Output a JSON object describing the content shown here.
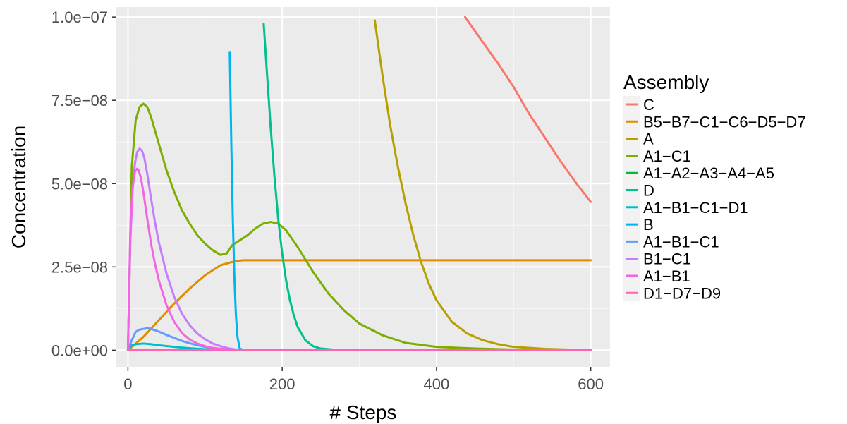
{
  "chart_data": {
    "type": "line",
    "xlabel": "# Steps",
    "ylabel": "Concentration",
    "xlim": [
      -15,
      625
    ],
    "ylim": [
      -5e-09,
      1.03e-07
    ],
    "x_ticks": [
      0,
      200,
      400,
      600
    ],
    "x_tick_labels": [
      "0",
      "200",
      "400",
      "600"
    ],
    "y_ticks": [
      0,
      2.5e-08,
      5e-08,
      7.5e-08,
      1e-07
    ],
    "y_tick_labels": [
      "0.0e+00",
      "2.5e−08",
      "5.0e−08",
      "7.5e−08",
      "1.0e−07"
    ],
    "grid": true,
    "background": "#ebebeb",
    "legend": {
      "title": "Assembly",
      "placement": "right"
    },
    "series": [
      {
        "name": "C",
        "color": "#F8766D",
        "x": [
          437,
          460,
          480,
          500,
          520,
          540,
          560,
          580,
          600
        ],
        "y": [
          1e-07,
          9.25e-08,
          8.6e-08,
          7.9e-08,
          7.1e-08,
          6.4e-08,
          5.7e-08,
          5.05e-08,
          4.45e-08
        ]
      },
      {
        "name": "B5−B7−C1−C6−D5−D7",
        "color": "#DE8C00",
        "x": [
          0,
          20,
          40,
          60,
          80,
          100,
          120,
          140,
          150,
          200,
          300,
          400,
          500,
          600
        ],
        "y": [
          0,
          4e-09,
          9e-09,
          1.4e-08,
          1.85e-08,
          2.25e-08,
          2.55e-08,
          2.68e-08,
          2.7e-08,
          2.7e-08,
          2.7e-08,
          2.7e-08,
          2.7e-08,
          2.7e-08
        ]
      },
      {
        "name": "A",
        "color": "#B79F00",
        "x": [
          320,
          330,
          340,
          350,
          360,
          370,
          380,
          390,
          400,
          420,
          440,
          460,
          480,
          500,
          540,
          600
        ],
        "y": [
          9.9e-08,
          8.25e-08,
          6.75e-08,
          5.5e-08,
          4.4e-08,
          3.45e-08,
          2.65e-08,
          2e-08,
          1.5e-08,
          8.5e-09,
          5e-09,
          3e-09,
          1.8e-09,
          1e-09,
          4e-10,
          0
        ]
      },
      {
        "name": "A1−C1",
        "color": "#7CAE00",
        "x": [
          0,
          5,
          10,
          15,
          20,
          25,
          30,
          40,
          50,
          60,
          70,
          80,
          90,
          100,
          110,
          120,
          128,
          135,
          145,
          155,
          165,
          175,
          185,
          195,
          205,
          220,
          240,
          260,
          280,
          300,
          330,
          360,
          400,
          450,
          500,
          600
        ],
        "y": [
          0,
          5.5e-08,
          6.9e-08,
          7.3e-08,
          7.4e-08,
          7.3e-08,
          7e-08,
          6.2e-08,
          5.4e-08,
          4.75e-08,
          4.2e-08,
          3.8e-08,
          3.45e-08,
          3.2e-08,
          3e-08,
          2.86e-08,
          2.9e-08,
          3.15e-08,
          3.3e-08,
          3.45e-08,
          3.65e-08,
          3.8e-08,
          3.85e-08,
          3.8e-08,
          3.6e-08,
          3.1e-08,
          2.35e-08,
          1.7e-08,
          1.2e-08,
          8e-09,
          4.5e-09,
          2.2e-09,
          1e-09,
          5e-10,
          2e-10,
          0
        ]
      },
      {
        "name": "A1−A2−A3−A4−A5",
        "color": "#00BA38",
        "x": [
          0,
          100,
          200,
          300,
          400,
          500,
          600
        ],
        "y": [
          0,
          0,
          0,
          0,
          0,
          0,
          0
        ]
      },
      {
        "name": "D",
        "color": "#00C08B",
        "x": [
          176,
          180,
          185,
          190,
          195,
          200,
          205,
          210,
          215,
          220,
          230,
          240,
          250,
          270,
          300,
          600
        ],
        "y": [
          9.8e-08,
          8.4e-08,
          6.7e-08,
          5.2e-08,
          3.9e-08,
          2.9e-08,
          2.1e-08,
          1.5e-08,
          1.05e-08,
          7e-09,
          3e-09,
          1.2e-09,
          5e-10,
          1e-10,
          0,
          0
        ]
      },
      {
        "name": "A1−B1−C1−D1",
        "color": "#00BFC4",
        "x": [
          0,
          5,
          10,
          20,
          30,
          40,
          60,
          80,
          100,
          120,
          140,
          200,
          600
        ],
        "y": [
          0,
          1.5e-09,
          1.8e-09,
          2e-09,
          1.8e-09,
          1.5e-09,
          1e-09,
          6e-10,
          3e-10,
          1.5e-10,
          0,
          0,
          0
        ]
      },
      {
        "name": "B",
        "color": "#00B4F0",
        "x": [
          132,
          134,
          136,
          138,
          140,
          142,
          145,
          150,
          600
        ],
        "y": [
          8.95e-08,
          6.2e-08,
          3.9e-08,
          2.2e-08,
          1.05e-08,
          4e-09,
          5e-10,
          0,
          0
        ]
      },
      {
        "name": "A1−B1−C1",
        "color": "#619CFF",
        "x": [
          0,
          5,
          10,
          15,
          20,
          25,
          30,
          40,
          50,
          60,
          70,
          80,
          90,
          100,
          110,
          120,
          130,
          140,
          145,
          200,
          600
        ],
        "y": [
          0,
          3e-09,
          5.5e-09,
          6.2e-09,
          6.4e-09,
          6.6e-09,
          6.4e-09,
          5.6e-09,
          4.6e-09,
          3.7e-09,
          2.8e-09,
          2.1e-09,
          1.5e-09,
          1e-09,
          7e-10,
          4e-10,
          2e-10,
          1e-10,
          0,
          0,
          0
        ]
      },
      {
        "name": "B1−C1",
        "color": "#C77CFF",
        "x": [
          0,
          3,
          6,
          9,
          12,
          15,
          18,
          21,
          25,
          30,
          35,
          40,
          50,
          60,
          70,
          80,
          90,
          100,
          110,
          120,
          130,
          140,
          145,
          200,
          600
        ],
        "y": [
          0,
          3.2e-08,
          4.8e-08,
          5.6e-08,
          5.95e-08,
          6.05e-08,
          6e-08,
          5.8e-08,
          5.3e-08,
          4.55e-08,
          3.85e-08,
          3.25e-08,
          2.3e-08,
          1.6e-08,
          1.1e-08,
          7.5e-09,
          5e-09,
          3.3e-09,
          2e-09,
          1.2e-09,
          6e-10,
          2e-10,
          0,
          0,
          0
        ]
      },
      {
        "name": "A1−B1",
        "color": "#F564E3",
        "x": [
          0,
          3,
          6,
          9,
          12,
          14,
          17,
          20,
          25,
          30,
          35,
          40,
          50,
          60,
          70,
          80,
          90,
          100,
          110,
          120,
          130,
          140,
          600
        ],
        "y": [
          0,
          3.5e-08,
          4.9e-08,
          5.35e-08,
          5.45e-08,
          5.4e-08,
          5.15e-08,
          4.75e-08,
          3.95e-08,
          3.2e-08,
          2.6e-08,
          2.1e-08,
          1.35e-08,
          8.5e-09,
          5.2e-09,
          3.2e-09,
          2e-09,
          1.2e-09,
          7e-10,
          4e-10,
          2e-10,
          0,
          0
        ]
      },
      {
        "name": "D1−D7−D9",
        "color": "#FF64B0",
        "x": [
          0,
          100,
          200,
          300,
          400,
          500,
          600
        ],
        "y": [
          0,
          0,
          0,
          0,
          0,
          0,
          0
        ]
      }
    ]
  }
}
